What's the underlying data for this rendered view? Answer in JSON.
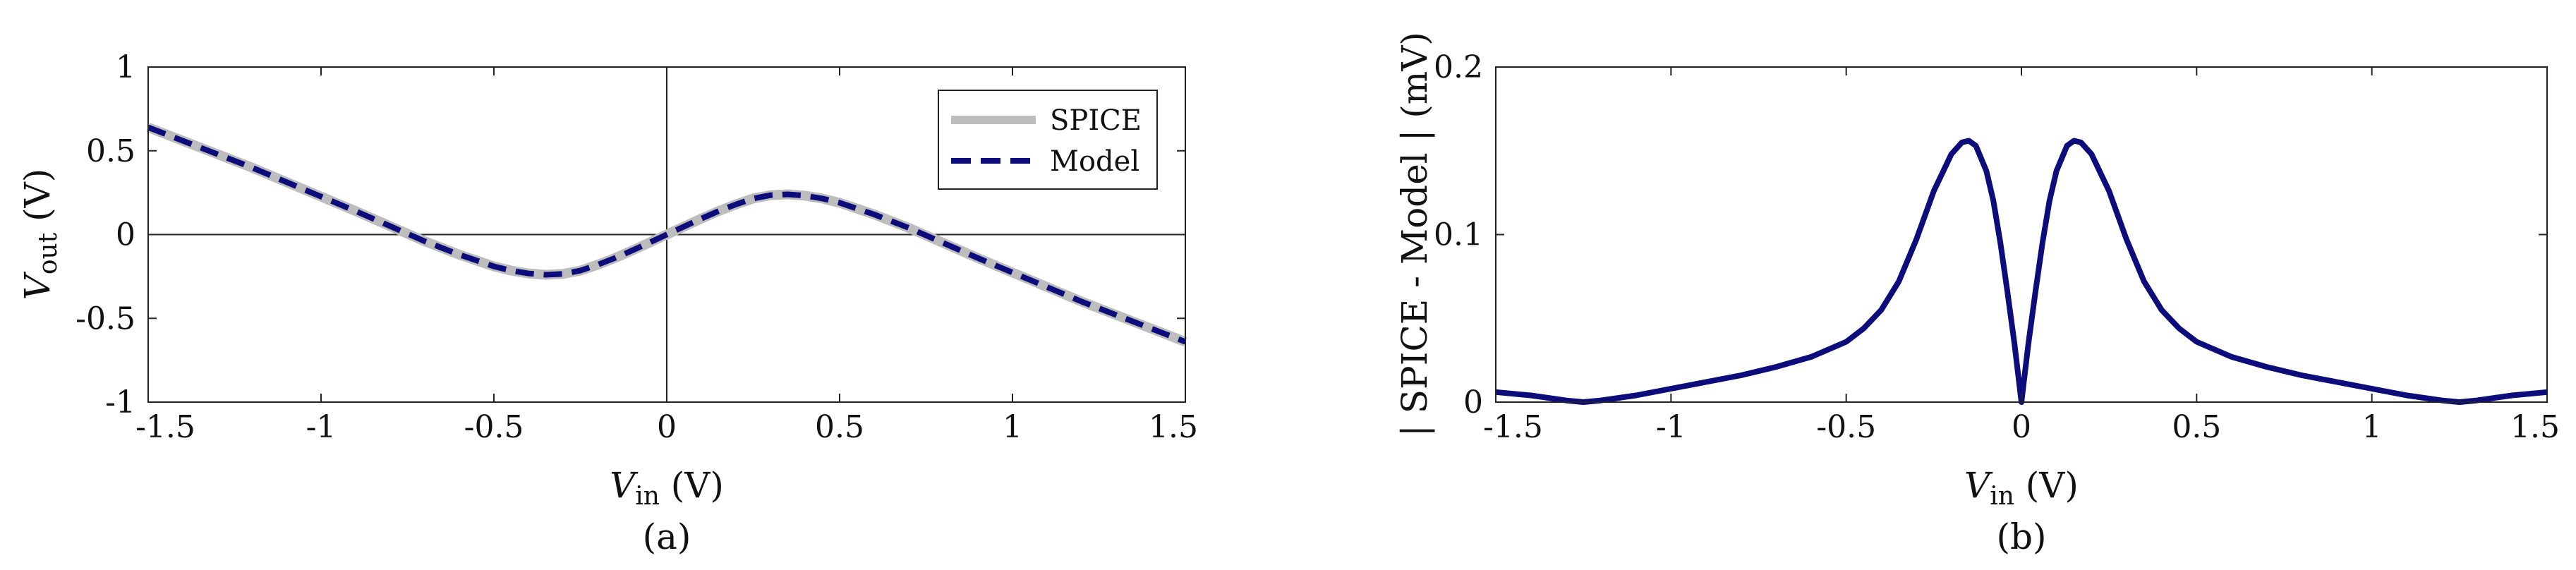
{
  "chart_data": [
    {
      "type": "line",
      "id": "a",
      "caption": "(a)",
      "xlabel_var": "V",
      "xlabel_sub": "in",
      "xlabel_unit": "(V)",
      "ylabel_var": "V",
      "ylabel_sub": "out",
      "ylabel_unit": "(V)",
      "xlim": [
        -1.5,
        1.5
      ],
      "ylim": [
        -1,
        1
      ],
      "xticks": [
        -1.5,
        -1,
        -0.5,
        0,
        0.5,
        1,
        1.5
      ],
      "xtick_labels": [
        "-1.5",
        "-1",
        "-0.5",
        "0",
        "0.5",
        "1",
        "1.5"
      ],
      "yticks": [
        -1,
        -0.5,
        0,
        0.5,
        1
      ],
      "ytick_labels": [
        "-1",
        "-0.5",
        "0",
        "0.5",
        "1"
      ],
      "zero_lines": true,
      "legend": {
        "placement": "top-right",
        "entries": [
          "SPICE",
          "Model"
        ]
      },
      "series": [
        {
          "name": "SPICE",
          "style": "solid",
          "color": "#bdbdbd",
          "x": [
            -1.5,
            -1.35,
            -1.2,
            -1.05,
            -0.9,
            -0.8,
            -0.7,
            -0.6,
            -0.5,
            -0.45,
            -0.4,
            -0.35,
            -0.3,
            -0.25,
            -0.2,
            -0.15,
            -0.1,
            -0.05,
            0,
            0.05,
            0.1,
            0.15,
            0.2,
            0.25,
            0.3,
            0.35,
            0.4,
            0.45,
            0.5,
            0.6,
            0.7,
            0.8,
            0.9,
            1.05,
            1.2,
            1.35,
            1.5
          ],
          "y": [
            0.64,
            0.52,
            0.4,
            0.27,
            0.14,
            0.05,
            -0.04,
            -0.12,
            -0.19,
            -0.215,
            -0.232,
            -0.24,
            -0.235,
            -0.215,
            -0.18,
            -0.14,
            -0.095,
            -0.048,
            0,
            0.048,
            0.095,
            0.14,
            0.18,
            0.215,
            0.235,
            0.24,
            0.232,
            0.215,
            0.19,
            0.12,
            0.04,
            -0.05,
            -0.14,
            -0.27,
            -0.4,
            -0.52,
            -0.64
          ]
        },
        {
          "name": "Model",
          "style": "dashed",
          "color": "#0c0c7a",
          "x": [
            -1.5,
            -1.35,
            -1.2,
            -1.05,
            -0.9,
            -0.8,
            -0.7,
            -0.6,
            -0.5,
            -0.45,
            -0.4,
            -0.35,
            -0.3,
            -0.25,
            -0.2,
            -0.15,
            -0.1,
            -0.05,
            0,
            0.05,
            0.1,
            0.15,
            0.2,
            0.25,
            0.3,
            0.35,
            0.4,
            0.45,
            0.5,
            0.6,
            0.7,
            0.8,
            0.9,
            1.05,
            1.2,
            1.35,
            1.5
          ],
          "y": [
            0.64,
            0.52,
            0.4,
            0.27,
            0.14,
            0.05,
            -0.04,
            -0.12,
            -0.19,
            -0.215,
            -0.232,
            -0.24,
            -0.235,
            -0.215,
            -0.18,
            -0.14,
            -0.095,
            -0.048,
            0,
            0.048,
            0.095,
            0.14,
            0.18,
            0.215,
            0.235,
            0.24,
            0.232,
            0.215,
            0.19,
            0.12,
            0.04,
            -0.05,
            -0.14,
            -0.27,
            -0.4,
            -0.52,
            -0.64
          ]
        }
      ]
    },
    {
      "type": "line",
      "id": "b",
      "caption": "(b)",
      "xlabel_var": "V",
      "xlabel_sub": "in",
      "xlabel_unit": "(V)",
      "ylabel_text": "| SPICE - Model | (mV)",
      "xlim": [
        -1.5,
        1.5
      ],
      "ylim": [
        0,
        0.2
      ],
      "xticks": [
        -1.5,
        -1,
        -0.5,
        0,
        0.5,
        1,
        1.5
      ],
      "xtick_labels": [
        "-1.5",
        "-1",
        "-0.5",
        "0",
        "0.5",
        "1",
        "1.5"
      ],
      "yticks": [
        0,
        0.1,
        0.2
      ],
      "ytick_labels": [
        "0",
        "0.1",
        "0.2"
      ],
      "zero_lines": false,
      "series": [
        {
          "name": "| SPICE - Model |",
          "style": "solid",
          "color": "#0c0c7a",
          "x": [
            -1.5,
            -1.4,
            -1.3,
            -1.25,
            -1.2,
            -1.1,
            -1.0,
            -0.9,
            -0.8,
            -0.7,
            -0.6,
            -0.5,
            -0.45,
            -0.4,
            -0.35,
            -0.3,
            -0.25,
            -0.2,
            -0.17,
            -0.15,
            -0.13,
            -0.1,
            -0.08,
            -0.06,
            -0.04,
            -0.02,
            0,
            0.02,
            0.04,
            0.06,
            0.08,
            0.1,
            0.13,
            0.15,
            0.17,
            0.2,
            0.25,
            0.3,
            0.35,
            0.4,
            0.45,
            0.5,
            0.6,
            0.7,
            0.8,
            0.9,
            1.0,
            1.1,
            1.2,
            1.25,
            1.3,
            1.4,
            1.5
          ],
          "y": [
            0.006,
            0.004,
            0.001,
            0,
            0.001,
            0.004,
            0.008,
            0.012,
            0.016,
            0.021,
            0.027,
            0.036,
            0.044,
            0.055,
            0.072,
            0.097,
            0.126,
            0.148,
            0.155,
            0.156,
            0.153,
            0.138,
            0.12,
            0.095,
            0.066,
            0.035,
            0,
            0.035,
            0.066,
            0.095,
            0.12,
            0.138,
            0.153,
            0.156,
            0.155,
            0.148,
            0.126,
            0.097,
            0.072,
            0.055,
            0.044,
            0.036,
            0.027,
            0.021,
            0.016,
            0.012,
            0.008,
            0.004,
            0.001,
            0,
            0.001,
            0.004,
            0.006
          ]
        }
      ]
    }
  ]
}
